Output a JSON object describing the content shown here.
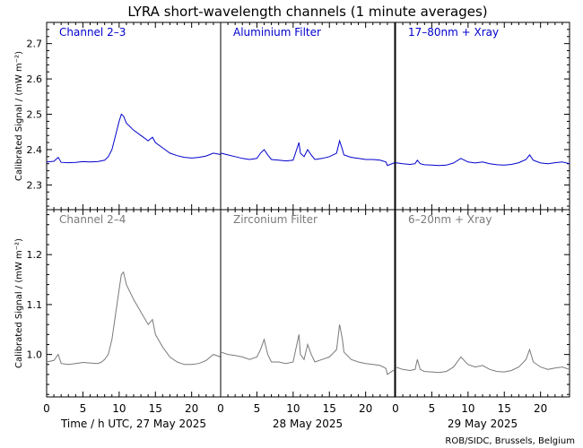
{
  "title": "LYRA short-wavelength channels (1 minute averages)",
  "credit": "ROB/SIDC, Brussels, Belgium",
  "ylabel": "Calibrated Signal / (mW m⁻²)",
  "chart_data": {
    "type": "line",
    "x_unit": "hour UTC",
    "days": [
      {
        "label": "Time / h UTC, 27 May 2025",
        "xlim": [
          0,
          24
        ],
        "xticks": [
          0,
          5,
          10,
          15,
          20
        ],
        "xtick_labels": [
          "0",
          "5",
          "10",
          "15",
          "20"
        ]
      },
      {
        "label": "28 May 2025",
        "xlim": [
          0,
          24
        ],
        "xticks": [
          0,
          5,
          10,
          15,
          20
        ],
        "xtick_labels": [
          "0",
          "5",
          "10",
          "15",
          "20"
        ]
      },
      {
        "label": "29 May 2025",
        "xlim": [
          0,
          24
        ],
        "xticks": [
          0,
          5,
          10,
          15,
          20
        ],
        "xtick_labels": [
          "0",
          "5",
          "10",
          "15",
          "20"
        ]
      }
    ],
    "rows": [
      {
        "ylim": [
          2.23,
          2.76
        ],
        "yticks": [
          2.3,
          2.4,
          2.5,
          2.6,
          2.7
        ],
        "ytick_labels": [
          "2.3",
          "2.4",
          "2.5",
          "2.6",
          "2.7"
        ],
        "color": "#0000cc",
        "panel_labels": [
          "Channel 2–3",
          "Aluminium Filter",
          "17–80nm + Xray"
        ],
        "series": [
          {
            "day": 0,
            "x": [
              0,
              1,
              1.6,
              2,
              3,
              4,
              5,
              6,
              7,
              7.5,
              8,
              8.5,
              9,
              9.5,
              10,
              10.3,
              10.6,
              11,
              12,
              13,
              14,
              14.6,
              15,
              16,
              17,
              18,
              19,
              20,
              21,
              22,
              23,
              24
            ],
            "y": [
              2.365,
              2.367,
              2.378,
              2.364,
              2.363,
              2.364,
              2.366,
              2.365,
              2.366,
              2.368,
              2.37,
              2.38,
              2.4,
              2.44,
              2.48,
              2.5,
              2.495,
              2.475,
              2.455,
              2.44,
              2.425,
              2.435,
              2.42,
              2.405,
              2.39,
              2.383,
              2.378,
              2.376,
              2.378,
              2.382,
              2.39,
              2.386
            ]
          },
          {
            "day": 1,
            "x": [
              0,
              1,
              2,
              3,
              4,
              5,
              5.5,
              6,
              6.5,
              7,
              8,
              9,
              10,
              10.8,
              11,
              11.5,
              12,
              12.5,
              13,
              14,
              15,
              16,
              16.4,
              16.8,
              17,
              18,
              19,
              20,
              21,
              22,
              22.8,
              23,
              24
            ],
            "y": [
              2.39,
              2.385,
              2.38,
              2.375,
              2.372,
              2.375,
              2.39,
              2.4,
              2.385,
              2.372,
              2.37,
              2.368,
              2.37,
              2.42,
              2.39,
              2.38,
              2.4,
              2.385,
              2.372,
              2.375,
              2.38,
              2.39,
              2.425,
              2.4,
              2.385,
              2.378,
              2.375,
              2.372,
              2.372,
              2.37,
              2.365,
              2.355,
              2.363
            ]
          },
          {
            "day": 2,
            "x": [
              0,
              1,
              2,
              2.7,
              3,
              3.4,
              4,
              5,
              6,
              7,
              8,
              9,
              10,
              11,
              12,
              13,
              14,
              15,
              16,
              17,
              18,
              18.5,
              19,
              20,
              21,
              22,
              23,
              24
            ],
            "y": [
              2.363,
              2.36,
              2.358,
              2.36,
              2.37,
              2.36,
              2.357,
              2.356,
              2.355,
              2.356,
              2.362,
              2.375,
              2.365,
              2.362,
              2.365,
              2.36,
              2.357,
              2.356,
              2.358,
              2.363,
              2.372,
              2.385,
              2.37,
              2.362,
              2.36,
              2.363,
              2.365,
              2.36
            ]
          }
        ]
      },
      {
        "ylim": [
          0.915,
          1.29
        ],
        "yticks": [
          1.0,
          1.1,
          1.2
        ],
        "ytick_labels": [
          "1.0",
          "1.1",
          "1.2"
        ],
        "color": "#7a7a7a",
        "panel_labels": [
          "Channel 2–4",
          "Zirconium Filter",
          "6–20nm + Xray"
        ],
        "series": [
          {
            "day": 0,
            "x": [
              0,
              1,
              1.6,
              2,
              3,
              4,
              5,
              6,
              7,
              7.5,
              8,
              8.5,
              9,
              9.5,
              10,
              10.3,
              10.6,
              11,
              12,
              13,
              14,
              14.6,
              15,
              16,
              17,
              18,
              19,
              20,
              21,
              22,
              23,
              24
            ],
            "y": [
              0.985,
              0.988,
              1.0,
              0.982,
              0.98,
              0.982,
              0.984,
              0.983,
              0.982,
              0.984,
              0.99,
              1.0,
              1.03,
              1.08,
              1.13,
              1.16,
              1.165,
              1.14,
              1.11,
              1.085,
              1.06,
              1.07,
              1.04,
              1.015,
              0.995,
              0.985,
              0.98,
              0.98,
              0.982,
              0.988,
              1.0,
              0.995
            ]
          },
          {
            "day": 1,
            "x": [
              0,
              1,
              2,
              3,
              4,
              5,
              5.5,
              6,
              6.5,
              7,
              8,
              9,
              10,
              10.8,
              11,
              11.5,
              12,
              12.5,
              13,
              14,
              15,
              16,
              16.4,
              16.8,
              17,
              18,
              19,
              20,
              21,
              22,
              22.8,
              23,
              24
            ],
            "y": [
              1.005,
              1.0,
              0.998,
              0.995,
              0.99,
              0.995,
              1.01,
              1.03,
              1.0,
              0.985,
              0.985,
              0.982,
              0.985,
              1.04,
              1.0,
              0.99,
              1.02,
              1.0,
              0.985,
              0.99,
              0.995,
              1.01,
              1.06,
              1.03,
              1.005,
              0.99,
              0.985,
              0.982,
              0.98,
              0.978,
              0.972,
              0.96,
              0.97
            ]
          },
          {
            "day": 2,
            "x": [
              0,
              1,
              2,
              2.7,
              3,
              3.4,
              4,
              5,
              6,
              7,
              8,
              9,
              10,
              11,
              12,
              13,
              14,
              15,
              16,
              17,
              18,
              18.5,
              19,
              20,
              21,
              22,
              23,
              24
            ],
            "y": [
              0.975,
              0.97,
              0.968,
              0.97,
              0.99,
              0.97,
              0.966,
              0.965,
              0.964,
              0.966,
              0.975,
              0.995,
              0.98,
              0.975,
              0.978,
              0.97,
              0.966,
              0.965,
              0.968,
              0.975,
              0.99,
              1.01,
              0.985,
              0.975,
              0.97,
              0.973,
              0.975,
              0.97
            ]
          }
        ]
      }
    ]
  }
}
